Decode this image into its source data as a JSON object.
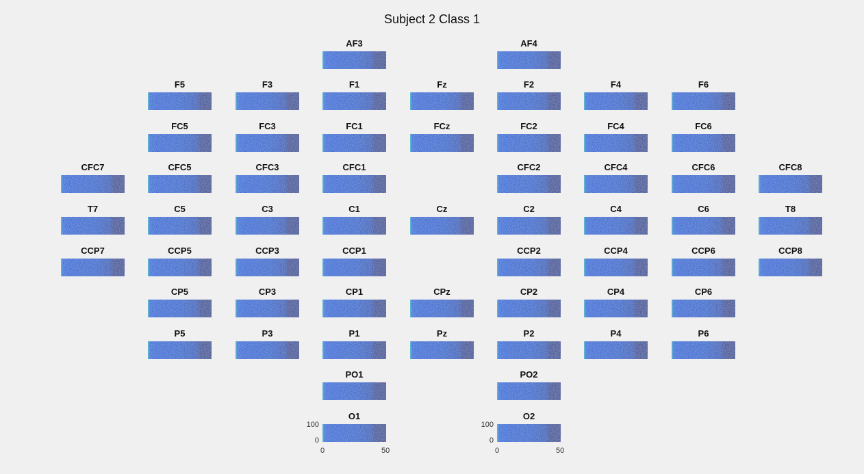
{
  "figure_title": "Subject 2 Class 1",
  "colors": {
    "background": "#f0f0f0",
    "spectrogram_dark": "#3a2d8a",
    "spectrogram_mid": "#2b6fd8",
    "spectrogram_bright": "#3ee0c0"
  },
  "chart_data": {
    "type": "heatmap",
    "title": "Subject 2 Class 1",
    "xlim": [
      0,
      50
    ],
    "ylim": [
      0,
      100
    ],
    "x_ticks": [
      "0",
      "50"
    ],
    "y_ticks": [
      "0",
      "100"
    ],
    "axis_labels_shown_on": [
      "O1",
      "O2"
    ],
    "colormap": "parula",
    "grid": [
      [
        "",
        "",
        "",
        "AF3",
        "",
        "AF4",
        "",
        "",
        ""
      ],
      [
        "",
        "F5",
        "F3",
        "F1",
        "Fz",
        "F2",
        "F4",
        "F6",
        ""
      ],
      [
        "",
        "FC5",
        "FC3",
        "FC1",
        "FCz",
        "FC2",
        "FC4",
        "FC6",
        ""
      ],
      [
        "CFC7",
        "CFC5",
        "CFC3",
        "CFC1",
        "",
        "CFC2",
        "CFC4",
        "CFC6",
        "CFC8"
      ],
      [
        "T7",
        "C5",
        "C3",
        "C1",
        "Cz",
        "C2",
        "C4",
        "C6",
        "T8"
      ],
      [
        "CCP7",
        "CCP5",
        "CCP3",
        "CCP1",
        "",
        "CCP2",
        "CCP4",
        "CCP6",
        "CCP8"
      ],
      [
        "",
        "CP5",
        "CP3",
        "CP1",
        "CPz",
        "CP2",
        "CP4",
        "CP6",
        ""
      ],
      [
        "",
        "P5",
        "P3",
        "P1",
        "Pz",
        "P2",
        "P4",
        "P6",
        ""
      ],
      [
        "",
        "",
        "",
        "PO1",
        "",
        "PO2",
        "",
        "",
        ""
      ],
      [
        "",
        "",
        "",
        "O1",
        "",
        "O2",
        "",
        "",
        ""
      ]
    ]
  }
}
